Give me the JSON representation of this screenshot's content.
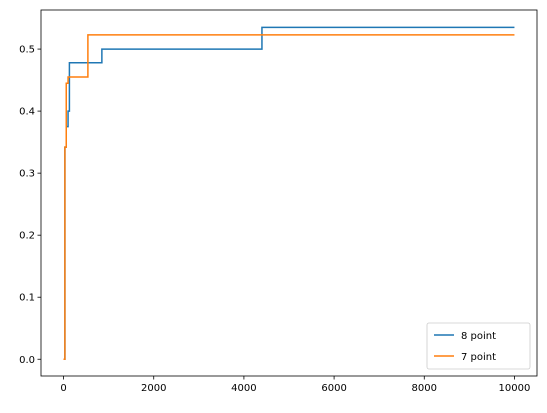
{
  "chart_data": {
    "type": "line",
    "title": "",
    "xlabel": "",
    "ylabel": "",
    "xlim": [
      -500,
      10500
    ],
    "ylim": [
      -0.027,
      0.563
    ],
    "xticks": [
      0,
      2000,
      4000,
      6000,
      8000,
      10000
    ],
    "xtick_labels": [
      "0",
      "2000",
      "4000",
      "6000",
      "8000",
      "10000"
    ],
    "yticks": [
      0.0,
      0.1,
      0.2,
      0.3,
      0.4,
      0.5
    ],
    "ytick_labels": [
      "0.0",
      "0.1",
      "0.2",
      "0.3",
      "0.4",
      "0.5"
    ],
    "grid": false,
    "legend_position": "lower-right",
    "series": [
      {
        "name": "8 point",
        "color": "#1f77b4",
        "step": "post",
        "x": [
          0,
          30,
          60,
          100,
          130,
          850,
          4400,
          10000
        ],
        "y": [
          0.0,
          0.342,
          0.375,
          0.4,
          0.478,
          0.5,
          0.535,
          0.535
        ]
      },
      {
        "name": "7 point",
        "color": "#ff7f0e",
        "step": "post",
        "x": [
          0,
          30,
          60,
          100,
          540,
          10000
        ],
        "y": [
          0.0,
          0.342,
          0.445,
          0.455,
          0.523,
          0.523
        ]
      }
    ]
  }
}
